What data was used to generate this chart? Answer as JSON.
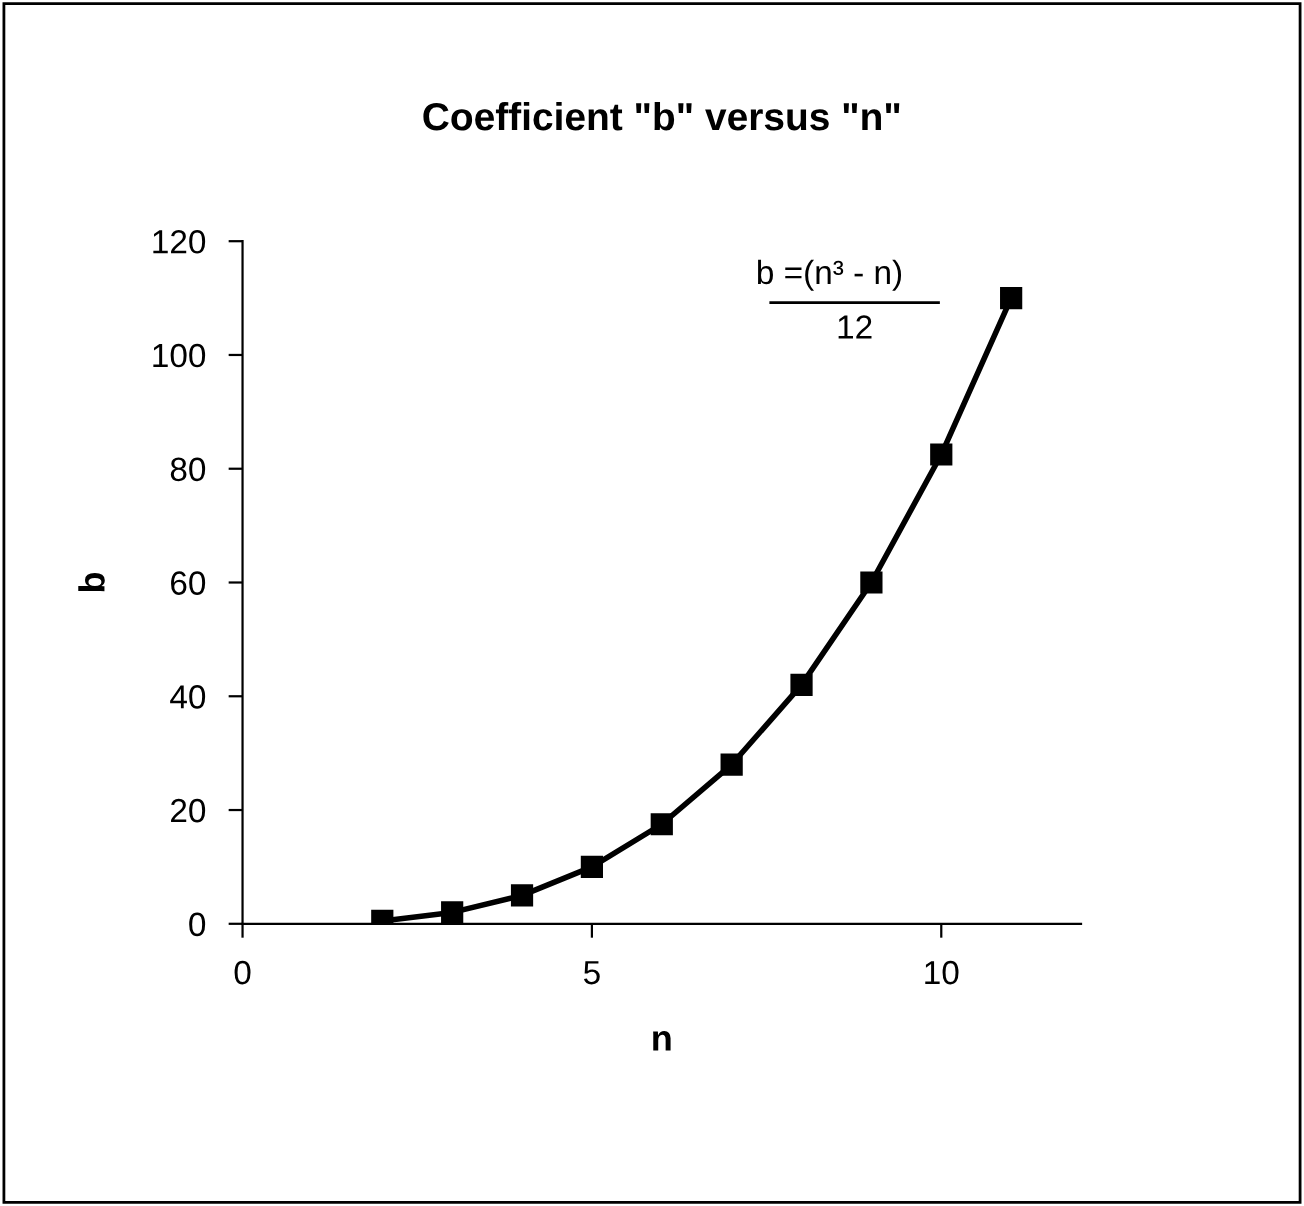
{
  "chart_data": {
    "type": "line",
    "title": "Coefficient \"b\" versus \"n\"",
    "xlabel": "n",
    "ylabel": "b",
    "x": [
      2,
      3,
      4,
      5,
      6,
      7,
      8,
      9,
      10,
      11
    ],
    "series": [
      {
        "color": "#000000",
        "values": [
          0.5,
          2,
          5,
          10,
          17.5,
          28,
          42,
          60,
          82.5,
          110
        ]
      }
    ],
    "marker": "square",
    "line_style": "solid",
    "xlim": [
      0,
      12
    ],
    "xticks": [
      0,
      5,
      10
    ],
    "ylim": [
      0,
      120
    ],
    "yticks": [
      0,
      20,
      40,
      60,
      80,
      100,
      120
    ],
    "grid": false,
    "legend": false,
    "annotations": [
      "b =(n³ - n)",
      "12"
    ]
  }
}
